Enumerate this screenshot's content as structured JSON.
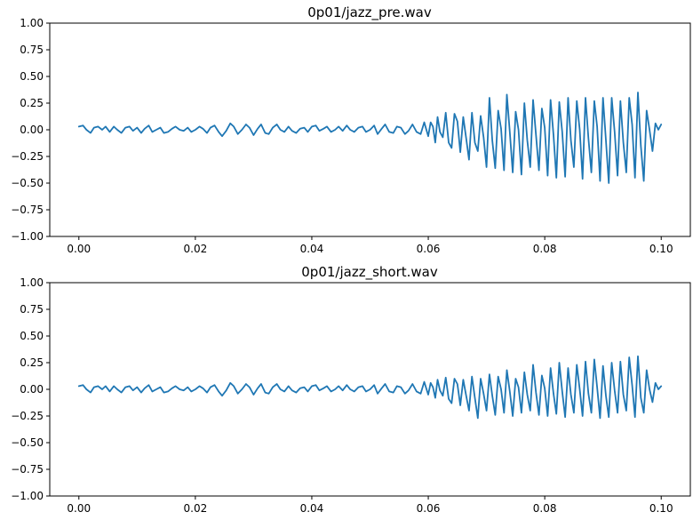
{
  "figure": {
    "background": "#ffffff"
  },
  "chart_data": [
    {
      "type": "line",
      "title": "0p01/jazz_pre.wav",
      "xlabel": "",
      "ylabel": "",
      "xlim": [
        -0.005,
        0.105
      ],
      "ylim": [
        -1.0,
        1.0
      ],
      "xticks": [
        0.0,
        0.02,
        0.04,
        0.06,
        0.08,
        0.1
      ],
      "xtick_labels": [
        "0.00",
        "0.02",
        "0.04",
        "0.06",
        "0.08",
        "0.10"
      ],
      "yticks": [
        1.0,
        0.75,
        0.5,
        0.25,
        0.0,
        -0.25,
        -0.5,
        -0.75,
        -1.0
      ],
      "ytick_labels": [
        "1.00",
        "0.75",
        "0.50",
        "0.25",
        "0.00",
        "−0.25",
        "−0.50",
        "−0.75",
        "−1.00"
      ],
      "grid": false,
      "legend": "none",
      "series": [
        {
          "color": "#1f77b4",
          "x": [
            0.0,
            0.0007,
            0.0013,
            0.002,
            0.0026,
            0.0033,
            0.004,
            0.0046,
            0.0053,
            0.006,
            0.0066,
            0.0073,
            0.008,
            0.0087,
            0.0093,
            0.01,
            0.0107,
            0.0113,
            0.012,
            0.0126,
            0.0133,
            0.014,
            0.0146,
            0.0153,
            0.016,
            0.0166,
            0.0173,
            0.018,
            0.0187,
            0.0193,
            0.02,
            0.0207,
            0.0213,
            0.022,
            0.0226,
            0.0233,
            0.024,
            0.0246,
            0.0253,
            0.026,
            0.0266,
            0.0273,
            0.028,
            0.0287,
            0.0293,
            0.03,
            0.0307,
            0.0313,
            0.032,
            0.0326,
            0.0333,
            0.034,
            0.0346,
            0.0353,
            0.036,
            0.0366,
            0.0373,
            0.038,
            0.0387,
            0.0393,
            0.04,
            0.0407,
            0.0413,
            0.042,
            0.0426,
            0.0433,
            0.044,
            0.0446,
            0.0453,
            0.046,
            0.0466,
            0.0473,
            0.048,
            0.0487,
            0.0493,
            0.05,
            0.0507,
            0.0513,
            0.052,
            0.0526,
            0.0533,
            0.054,
            0.0546,
            0.0553,
            0.056,
            0.0566,
            0.0573,
            0.058,
            0.0587,
            0.0593,
            0.06,
            0.0604,
            0.0608,
            0.0612,
            0.0616,
            0.062,
            0.0625,
            0.063,
            0.0635,
            0.064,
            0.0645,
            0.065,
            0.0655,
            0.066,
            0.0665,
            0.067,
            0.0675,
            0.068,
            0.0685,
            0.069,
            0.0695,
            0.07,
            0.0705,
            0.071,
            0.0715,
            0.072,
            0.0725,
            0.073,
            0.0735,
            0.074,
            0.0745,
            0.075,
            0.0755,
            0.076,
            0.0765,
            0.077,
            0.0775,
            0.078,
            0.0785,
            0.079,
            0.0795,
            0.08,
            0.0805,
            0.081,
            0.0815,
            0.082,
            0.0825,
            0.083,
            0.0835,
            0.084,
            0.0845,
            0.085,
            0.0855,
            0.086,
            0.0865,
            0.087,
            0.0875,
            0.088,
            0.0885,
            0.089,
            0.0895,
            0.09,
            0.0905,
            0.091,
            0.0915,
            0.092,
            0.0925,
            0.093,
            0.0935,
            0.094,
            0.0945,
            0.095,
            0.0955,
            0.096,
            0.0965,
            0.097,
            0.0975,
            0.098,
            0.0985,
            0.099,
            0.0995,
            0.1
          ],
          "y": [
            0.03,
            0.04,
            0.0,
            -0.03,
            0.02,
            0.03,
            0.0,
            0.03,
            -0.02,
            0.03,
            0.0,
            -0.03,
            0.02,
            0.03,
            -0.01,
            0.02,
            -0.03,
            0.01,
            0.04,
            -0.02,
            0.0,
            0.02,
            -0.03,
            -0.02,
            0.01,
            0.03,
            0.0,
            -0.01,
            0.02,
            -0.02,
            0.0,
            0.03,
            0.01,
            -0.03,
            0.02,
            0.04,
            -0.02,
            -0.06,
            -0.01,
            0.06,
            0.03,
            -0.04,
            0.0,
            0.05,
            0.02,
            -0.05,
            0.01,
            0.05,
            -0.03,
            -0.04,
            0.02,
            0.05,
            0.0,
            -0.02,
            0.03,
            -0.01,
            -0.03,
            0.01,
            0.02,
            -0.02,
            0.03,
            0.04,
            -0.01,
            0.01,
            0.03,
            -0.02,
            0.0,
            0.03,
            -0.01,
            0.04,
            0.0,
            -0.02,
            0.02,
            0.03,
            -0.02,
            0.0,
            0.04,
            -0.04,
            0.01,
            0.05,
            -0.02,
            -0.03,
            0.03,
            0.02,
            -0.04,
            -0.01,
            0.05,
            -0.02,
            -0.04,
            0.07,
            -0.06,
            0.07,
            0.03,
            -0.12,
            0.12,
            -0.02,
            -0.07,
            0.16,
            -0.12,
            -0.17,
            0.15,
            0.08,
            -0.21,
            0.12,
            -0.08,
            -0.28,
            0.16,
            -0.12,
            -0.2,
            0.13,
            -0.07,
            -0.35,
            0.3,
            -0.1,
            -0.36,
            0.18,
            0.01,
            -0.38,
            0.33,
            -0.02,
            -0.4,
            0.17,
            0.0,
            -0.42,
            0.25,
            -0.1,
            -0.35,
            0.28,
            -0.05,
            -0.38,
            0.2,
            0.02,
            -0.43,
            0.28,
            -0.05,
            -0.45,
            0.26,
            -0.02,
            -0.44,
            0.3,
            -0.1,
            -0.35,
            0.27,
            0.0,
            -0.46,
            0.3,
            -0.08,
            -0.4,
            0.27,
            0.03,
            -0.48,
            0.3,
            -0.1,
            -0.5,
            0.3,
            -0.02,
            -0.43,
            0.27,
            -0.12,
            -0.4,
            0.3,
            0.05,
            -0.45,
            0.35,
            -0.15,
            -0.48,
            0.18,
            0.0,
            -0.2,
            0.06,
            0.0,
            0.05
          ]
        }
      ]
    },
    {
      "type": "line",
      "title": "0p01/jazz_short.wav",
      "xlabel": "",
      "ylabel": "",
      "xlim": [
        -0.005,
        0.105
      ],
      "ylim": [
        -1.0,
        1.0
      ],
      "xticks": [
        0.0,
        0.02,
        0.04,
        0.06,
        0.08,
        0.1
      ],
      "xtick_labels": [
        "0.00",
        "0.02",
        "0.04",
        "0.06",
        "0.08",
        "0.10"
      ],
      "yticks": [
        1.0,
        0.75,
        0.5,
        0.25,
        0.0,
        -0.25,
        -0.5,
        -0.75,
        -1.0
      ],
      "ytick_labels": [
        "1.00",
        "0.75",
        "0.50",
        "0.25",
        "0.00",
        "−0.25",
        "−0.50",
        "−0.75",
        "−1.00"
      ],
      "grid": false,
      "legend": "none",
      "series": [
        {
          "color": "#1f77b4",
          "x": [
            0.0,
            0.0007,
            0.0013,
            0.002,
            0.0026,
            0.0033,
            0.004,
            0.0046,
            0.0053,
            0.006,
            0.0066,
            0.0073,
            0.008,
            0.0087,
            0.0093,
            0.01,
            0.0107,
            0.0113,
            0.012,
            0.0126,
            0.0133,
            0.014,
            0.0146,
            0.0153,
            0.016,
            0.0166,
            0.0173,
            0.018,
            0.0187,
            0.0193,
            0.02,
            0.0207,
            0.0213,
            0.022,
            0.0226,
            0.0233,
            0.024,
            0.0246,
            0.0253,
            0.026,
            0.0266,
            0.0273,
            0.028,
            0.0287,
            0.0293,
            0.03,
            0.0307,
            0.0313,
            0.032,
            0.0326,
            0.0333,
            0.034,
            0.0346,
            0.0353,
            0.036,
            0.0366,
            0.0373,
            0.038,
            0.0387,
            0.0393,
            0.04,
            0.0407,
            0.0413,
            0.042,
            0.0426,
            0.0433,
            0.044,
            0.0446,
            0.0453,
            0.046,
            0.0466,
            0.0473,
            0.048,
            0.0487,
            0.0493,
            0.05,
            0.0507,
            0.0513,
            0.052,
            0.0526,
            0.0533,
            0.054,
            0.0546,
            0.0553,
            0.056,
            0.0566,
            0.0573,
            0.058,
            0.0587,
            0.0593,
            0.06,
            0.0604,
            0.0608,
            0.0612,
            0.0616,
            0.062,
            0.0625,
            0.063,
            0.0635,
            0.064,
            0.0645,
            0.065,
            0.0655,
            0.066,
            0.0665,
            0.067,
            0.0675,
            0.068,
            0.0685,
            0.069,
            0.0695,
            0.07,
            0.0705,
            0.071,
            0.0715,
            0.072,
            0.0725,
            0.073,
            0.0735,
            0.074,
            0.0745,
            0.075,
            0.0755,
            0.076,
            0.0765,
            0.077,
            0.0775,
            0.078,
            0.0785,
            0.079,
            0.0795,
            0.08,
            0.0805,
            0.081,
            0.0815,
            0.082,
            0.0825,
            0.083,
            0.0835,
            0.084,
            0.0845,
            0.085,
            0.0855,
            0.086,
            0.0865,
            0.087,
            0.0875,
            0.088,
            0.0885,
            0.089,
            0.0895,
            0.09,
            0.0905,
            0.091,
            0.0915,
            0.092,
            0.0925,
            0.093,
            0.0935,
            0.094,
            0.0945,
            0.095,
            0.0955,
            0.096,
            0.0965,
            0.097,
            0.0975,
            0.098,
            0.0985,
            0.099,
            0.0995,
            0.1
          ],
          "y": [
            0.03,
            0.04,
            0.0,
            -0.03,
            0.02,
            0.03,
            0.0,
            0.03,
            -0.02,
            0.03,
            0.0,
            -0.03,
            0.02,
            0.03,
            -0.01,
            0.02,
            -0.03,
            0.01,
            0.04,
            -0.02,
            0.0,
            0.02,
            -0.03,
            -0.02,
            0.01,
            0.03,
            0.0,
            -0.01,
            0.02,
            -0.02,
            0.0,
            0.03,
            0.01,
            -0.03,
            0.02,
            0.04,
            -0.02,
            -0.06,
            -0.01,
            0.06,
            0.03,
            -0.04,
            0.0,
            0.05,
            0.02,
            -0.05,
            0.01,
            0.05,
            -0.03,
            -0.04,
            0.02,
            0.05,
            0.0,
            -0.02,
            0.03,
            -0.01,
            -0.03,
            0.01,
            0.02,
            -0.02,
            0.03,
            0.04,
            -0.01,
            0.01,
            0.03,
            -0.02,
            0.0,
            0.03,
            -0.01,
            0.04,
            0.0,
            -0.02,
            0.02,
            0.03,
            -0.02,
            0.0,
            0.04,
            -0.04,
            0.01,
            0.05,
            -0.02,
            -0.03,
            0.03,
            0.02,
            -0.04,
            -0.01,
            0.05,
            -0.02,
            -0.04,
            0.07,
            -0.05,
            0.06,
            0.02,
            -0.08,
            0.09,
            -0.01,
            -0.06,
            0.11,
            -0.09,
            -0.13,
            0.1,
            0.05,
            -0.15,
            0.09,
            -0.06,
            -0.2,
            0.12,
            -0.08,
            -0.27,
            0.1,
            -0.04,
            -0.2,
            0.14,
            -0.06,
            -0.24,
            0.12,
            0.0,
            -0.22,
            0.18,
            -0.02,
            -0.25,
            0.1,
            0.02,
            -0.22,
            0.16,
            -0.05,
            -0.2,
            0.23,
            -0.03,
            -0.24,
            0.13,
            0.01,
            -0.25,
            0.2,
            -0.04,
            -0.23,
            0.25,
            -0.02,
            -0.26,
            0.2,
            -0.05,
            -0.22,
            0.23,
            0.0,
            -0.25,
            0.26,
            -0.04,
            -0.22,
            0.28,
            0.02,
            -0.27,
            0.22,
            -0.06,
            -0.26,
            0.25,
            -0.01,
            -0.22,
            0.26,
            -0.05,
            -0.2,
            0.3,
            0.04,
            -0.26,
            0.31,
            -0.08,
            -0.22,
            0.18,
            0.0,
            -0.12,
            0.06,
            0.0,
            0.03
          ]
        }
      ]
    }
  ]
}
